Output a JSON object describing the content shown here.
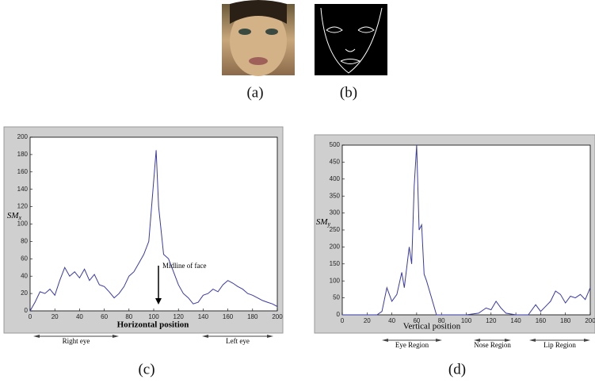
{
  "chart_data": [
    {
      "type": "line",
      "ylabel": "SM",
      "ylabel_sub": "x",
      "xlabel": "Horizontal position",
      "color": "#3a3aa8",
      "x": [
        0,
        4,
        8,
        12,
        16,
        20,
        24,
        28,
        32,
        36,
        40,
        44,
        48,
        52,
        56,
        60,
        64,
        68,
        72,
        76,
        80,
        84,
        88,
        92,
        96,
        100,
        102,
        104,
        108,
        112,
        116,
        120,
        124,
        128,
        132,
        136,
        140,
        144,
        148,
        152,
        156,
        160,
        164,
        168,
        172,
        176,
        180,
        184,
        188,
        192,
        196,
        200
      ],
      "values": [
        0,
        10,
        22,
        20,
        25,
        18,
        35,
        50,
        40,
        45,
        38,
        48,
        35,
        42,
        30,
        28,
        22,
        15,
        20,
        28,
        40,
        45,
        55,
        65,
        80,
        150,
        185,
        120,
        65,
        60,
        45,
        30,
        20,
        15,
        8,
        10,
        18,
        20,
        25,
        22,
        30,
        35,
        32,
        28,
        25,
        20,
        18,
        15,
        12,
        10,
        8,
        5
      ],
      "xlim": [
        0,
        200
      ],
      "ylim": [
        0,
        200
      ],
      "xticks": [
        0,
        20,
        40,
        60,
        80,
        100,
        120,
        140,
        160,
        180,
        200
      ],
      "yticks": [
        0,
        20,
        40,
        60,
        80,
        100,
        120,
        140,
        160,
        180,
        200
      ],
      "annotations": [
        "Midline of face"
      ],
      "regions": [
        "Right   eye",
        "Left eye"
      ]
    },
    {
      "type": "line",
      "ylabel": "SM",
      "ylabel_sub": "y",
      "xlabel": "Vertical position",
      "color": "#3a3aa8",
      "x": [
        0,
        4,
        8,
        12,
        16,
        20,
        24,
        28,
        32,
        36,
        40,
        44,
        48,
        50,
        54,
        56,
        58,
        60,
        62,
        64,
        66,
        68,
        72,
        76,
        80,
        90,
        100,
        110,
        116,
        120,
        124,
        128,
        132,
        140,
        150,
        156,
        160,
        164,
        168,
        172,
        176,
        180,
        184,
        188,
        192,
        196,
        200
      ],
      "values": [
        0,
        0,
        0,
        0,
        0,
        0,
        0,
        0,
        10,
        80,
        40,
        60,
        125,
        80,
        200,
        150,
        380,
        500,
        250,
        265,
        120,
        100,
        50,
        0,
        0,
        0,
        0,
        5,
        20,
        15,
        40,
        20,
        5,
        0,
        0,
        30,
        10,
        25,
        40,
        70,
        60,
        35,
        55,
        50,
        60,
        45,
        80
      ],
      "xlim": [
        0,
        200
      ],
      "ylim": [
        0,
        500
      ],
      "xticks": [
        0,
        20,
        40,
        60,
        80,
        100,
        120,
        140,
        160,
        180,
        200
      ],
      "yticks": [
        0,
        50,
        100,
        150,
        200,
        250,
        300,
        350,
        400,
        450,
        500
      ],
      "annotations": [],
      "regions": [
        "Eye Region",
        "Nose Region",
        "Lip Region"
      ]
    }
  ],
  "captions": [
    "(a)",
    "(b)",
    "(c)",
    "(d)"
  ]
}
